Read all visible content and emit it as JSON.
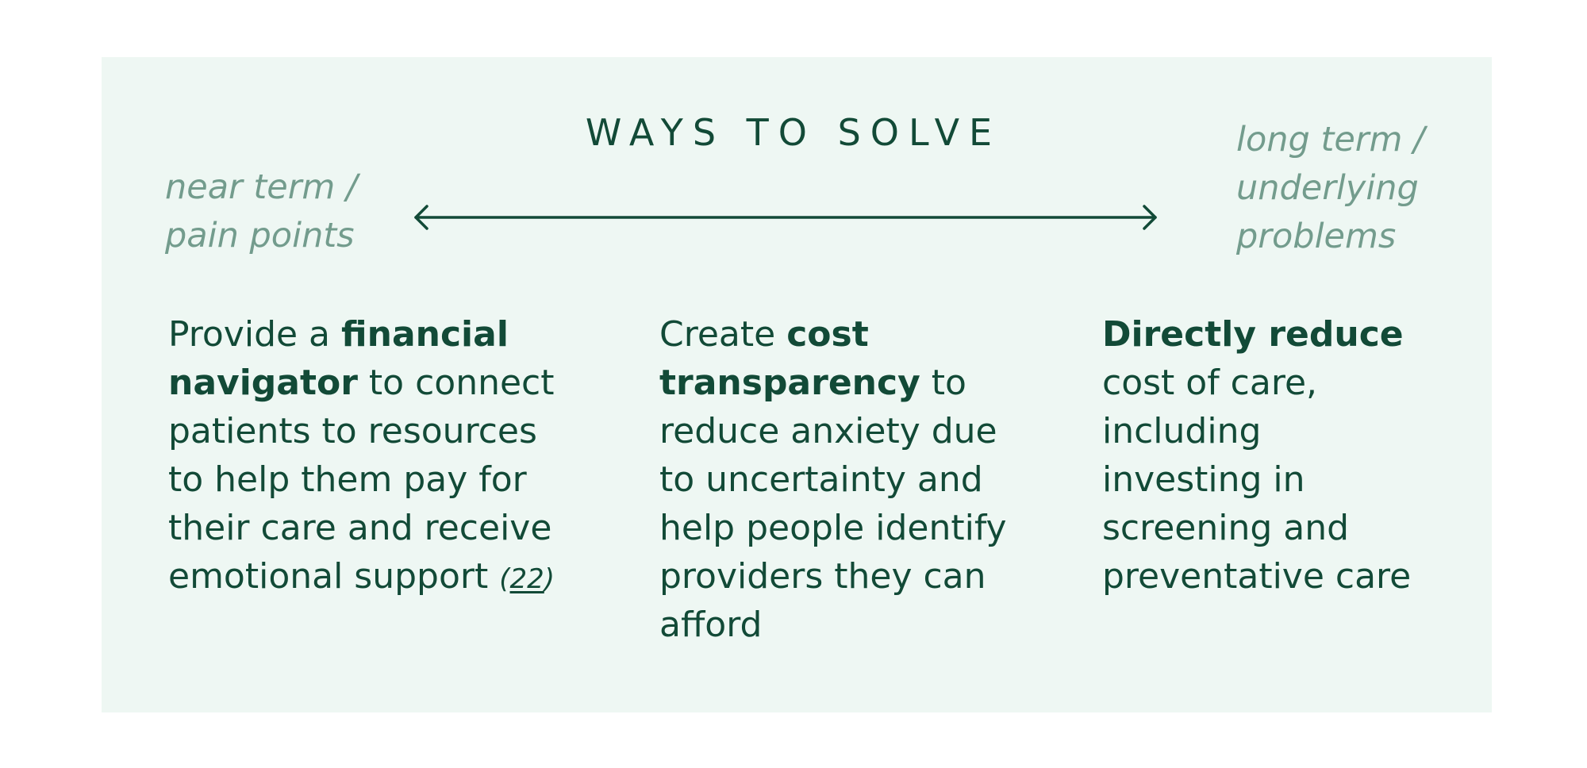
{
  "title": "WAYS TO SOLVE",
  "left_label": {
    "line1": "near term /",
    "line2": "pain points"
  },
  "right_label": {
    "line1": "long term /",
    "line2": "underlying",
    "line3": "problems"
  },
  "columns": [
    {
      "l1_pre": "Provide a ",
      "l1_bold": "financial",
      "l2_bold": "navigator",
      "l2_post": " to connect",
      "l3": "patients to resources",
      "l4": "to help them pay for",
      "l5": "their care and receive",
      "l6": "emotional support",
      "cite_open": "(",
      "cite_num": "22",
      "cite_close": ")"
    },
    {
      "l1_pre": "Create ",
      "l1_bold": "cost",
      "l2_bold": "transparency",
      "l2_post": " to",
      "l3": "reduce anxiety due",
      "l4": "to uncertainty and",
      "l5": "help people identify",
      "l6": "providers they can",
      "l7": "afford"
    },
    {
      "l1_bold": "Directly reduce",
      "l2": "cost of care,",
      "l3": "including",
      "l4": "investing in",
      "l5": "screening and",
      "l6": "preventative care"
    }
  ],
  "colors": {
    "panel_bg": "#eef7f3",
    "text": "#124a37",
    "muted": "#739c8d"
  }
}
